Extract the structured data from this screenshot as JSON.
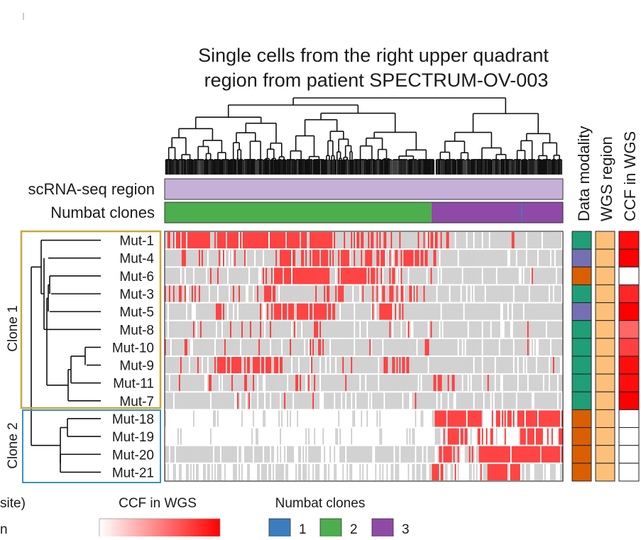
{
  "title": {
    "line1": "Single cells from the right upper quadrant",
    "line2": "region from patient SPECTRUM-OV-003"
  },
  "track_labels": {
    "region": "scRNA-seq region",
    "numbat": "Numbat clones"
  },
  "column_headers": [
    "Data modality",
    "WGS region",
    "CCF in WGS"
  ],
  "mutations": [
    "Mut-1",
    "Mut-4",
    "Mut-6",
    "Mut-3",
    "Mut-5",
    "Mut-8",
    "Mut-10",
    "Mut-9",
    "Mut-11",
    "Mut-7",
    "Mut-18",
    "Mut-19",
    "Mut-20",
    "Mut-21"
  ],
  "clones": [
    {
      "label": "Clone 1",
      "color": "#c9a53a"
    },
    {
      "label": "Clone 2",
      "color": "#3b8fc4"
    }
  ],
  "legend": {
    "left_fragment": "site)",
    "left_fragment_2": "n",
    "ccf_title": "CCF in WGS",
    "numbat_title": "Numbat clones",
    "numbat_items": [
      {
        "label": "1",
        "color": "#3b7dbf"
      },
      {
        "label": "2",
        "color": "#4cae4c"
      },
      {
        "label": "3",
        "color": "#8e4aa6"
      }
    ]
  },
  "colors": {
    "present": "#ff1a1a",
    "absent": "#c8c8c8",
    "region": "#c6b0d8",
    "clone2": "#4cae4c",
    "clone3": "#8e4aa6",
    "modality_green": "#1f9e77",
    "modality_purple": "#7570b3",
    "modality_orange": "#d95f02",
    "wgs_region": "#fdc07a"
  },
  "chart_data": {
    "type": "heatmap",
    "title": "Single cells from the right upper quadrant region from patient SPECTRUM-OV-003",
    "rows": [
      "Mut-1",
      "Mut-4",
      "Mut-6",
      "Mut-3",
      "Mut-5",
      "Mut-8",
      "Mut-10",
      "Mut-9",
      "Mut-11",
      "Mut-7",
      "Mut-18",
      "Mut-19",
      "Mut-20",
      "Mut-21"
    ],
    "n_cells": 280,
    "numbat_clone_fractions": {
      "2": 0.67,
      "3": 0.33
    },
    "row_presence": {
      "Mut-1": [
        [
          0,
          0.39,
          0.85
        ],
        [
          0.39,
          0.67,
          0.35
        ],
        [
          0.67,
          1,
          0.05
        ]
      ],
      "Mut-4": [
        [
          0,
          0.27,
          0.15
        ],
        [
          0.27,
          0.67,
          0.55
        ],
        [
          0.67,
          1,
          0.02
        ]
      ],
      "Mut-6": [
        [
          0,
          0.27,
          0.12
        ],
        [
          0.27,
          0.5,
          0.75
        ],
        [
          0.5,
          0.67,
          0.35
        ],
        [
          0.67,
          1,
          0.02
        ]
      ],
      "Mut-3": [
        [
          0,
          0.1,
          0.85
        ],
        [
          0.1,
          0.5,
          0.2
        ],
        [
          0.5,
          0.67,
          0.4
        ],
        [
          0.67,
          1,
          0.02
        ]
      ],
      "Mut-5": [
        [
          0,
          0.23,
          0.08
        ],
        [
          0.23,
          0.35,
          0.55
        ],
        [
          0.35,
          0.5,
          0.1
        ],
        [
          0.5,
          0.6,
          0.7
        ],
        [
          0.6,
          1,
          0.02
        ]
      ],
      "Mut-8": [
        [
          0,
          0.67,
          0.12
        ],
        [
          0.67,
          1,
          0.02
        ]
      ],
      "Mut-10": [
        [
          0,
          0.36,
          0.1
        ],
        [
          0.36,
          0.4,
          0.8
        ],
        [
          0.4,
          0.67,
          0.12
        ],
        [
          0.67,
          1,
          0.02
        ]
      ],
      "Mut-9": [
        [
          0,
          0.67,
          0.15
        ],
        [
          0.67,
          1,
          0.02
        ]
      ],
      "Mut-11": [
        [
          0,
          0.67,
          0.1
        ],
        [
          0.67,
          1,
          0.02
        ]
      ],
      "Mut-7": [
        [
          0,
          0.67,
          0.08
        ],
        [
          0.67,
          1,
          0.01
        ]
      ],
      "Mut-18": [
        [
          0,
          0.67,
          0.0
        ],
        [
          0.67,
          1,
          0.75
        ]
      ],
      "Mut-19": [
        [
          0,
          0.67,
          0.0
        ],
        [
          0.67,
          0.75,
          0.6
        ],
        [
          0.75,
          1,
          0.55
        ]
      ],
      "Mut-20": [
        [
          0,
          0.67,
          0.0
        ],
        [
          0.67,
          0.8,
          0.55
        ],
        [
          0.8,
          1,
          0.8
        ]
      ],
      "Mut-21": [
        [
          0,
          0.67,
          0.0
        ],
        [
          0.67,
          0.7,
          0.8
        ],
        [
          0.7,
          0.8,
          0.3
        ],
        [
          0.8,
          0.89,
          0.85
        ],
        [
          0.89,
          1,
          0.05
        ]
      ]
    },
    "gray_density": [
      0.9,
      0.9,
      0.9,
      0.9,
      0.9,
      0.9,
      0.9,
      0.9,
      0.9,
      0.9,
      0.15,
      0.15,
      0.75,
      0.5
    ],
    "data_modality": [
      "green",
      "purple",
      "orange",
      "green",
      "purple",
      "green",
      "green",
      "green",
      "green",
      "green",
      "orange",
      "orange",
      "orange",
      "orange"
    ],
    "ccf_in_wgs": [
      0.95,
      1.0,
      0.0,
      0.85,
      1.0,
      0.6,
      0.75,
      0.95,
      0.95,
      1.0,
      0.0,
      0.0,
      0.0,
      0.0
    ]
  }
}
